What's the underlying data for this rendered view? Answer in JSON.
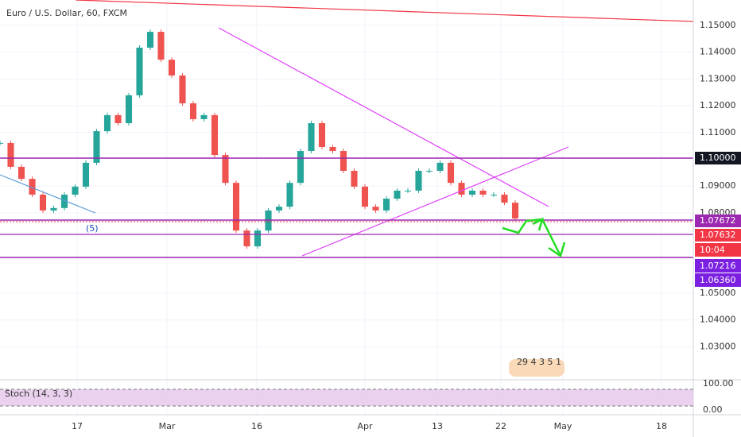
{
  "header": {
    "title": "Euro / U.S. Dollar, 60, FXCM"
  },
  "price": {
    "top": 1.15,
    "scale": 3370,
    "ticks": [
      {
        "value": 1.15,
        "label": "1.15000"
      },
      {
        "value": 1.14,
        "label": "1.14000"
      },
      {
        "value": 1.13,
        "label": "1.13000"
      },
      {
        "value": 1.12,
        "label": "1.12000"
      },
      {
        "value": 1.11,
        "label": "1.11000"
      },
      {
        "value": 1.09,
        "label": "1.09000"
      },
      {
        "value": 1.08,
        "label": "1.08000"
      },
      {
        "value": 1.05,
        "label": "1.05000"
      },
      {
        "value": 1.04,
        "label": "1.04000"
      },
      {
        "value": 1.03,
        "label": "1.03000"
      }
    ],
    "closes": [
      1.1061,
      1.0972,
      1.0927,
      1.0868,
      1.0809,
      1.0818,
      1.0868,
      1.0898,
      1.0987,
      1.1105,
      1.1165,
      1.1135,
      1.1239,
      1.1417,
      1.1476,
      1.1372,
      1.1313,
      1.1209,
      1.115,
      1.1165,
      1.1016,
      1.0912,
      1.0734,
      1.0675,
      1.0734,
      1.0809,
      1.0823,
      1.0912,
      1.1031,
      1.1135,
      1.1046,
      1.1031,
      1.0957,
      1.0898,
      1.0823,
      1.0809,
      1.0853,
      1.0883,
      1.0883,
      1.0957,
      1.0957,
      1.0987,
      1.0912,
      1.0868,
      1.0883,
      1.0868,
      1.0868,
      1.0838,
      1.0779
    ]
  },
  "badges": {
    "level": "1.10000",
    "bid": "1.07672",
    "ask": "1.07632",
    "countdown": "10:04",
    "support1": "1.07216",
    "support2": "1.06360"
  },
  "annotations": {
    "wave": "(5)",
    "events": "29 4  3 5  1"
  },
  "time_axis": [
    "17",
    "Mar",
    "16",
    "Apr",
    "13",
    "22",
    "May",
    "18"
  ],
  "stoch": {
    "label": "Stoch (14, 3, 3)",
    "ticks": [
      "100.00",
      "0.00"
    ]
  }
}
